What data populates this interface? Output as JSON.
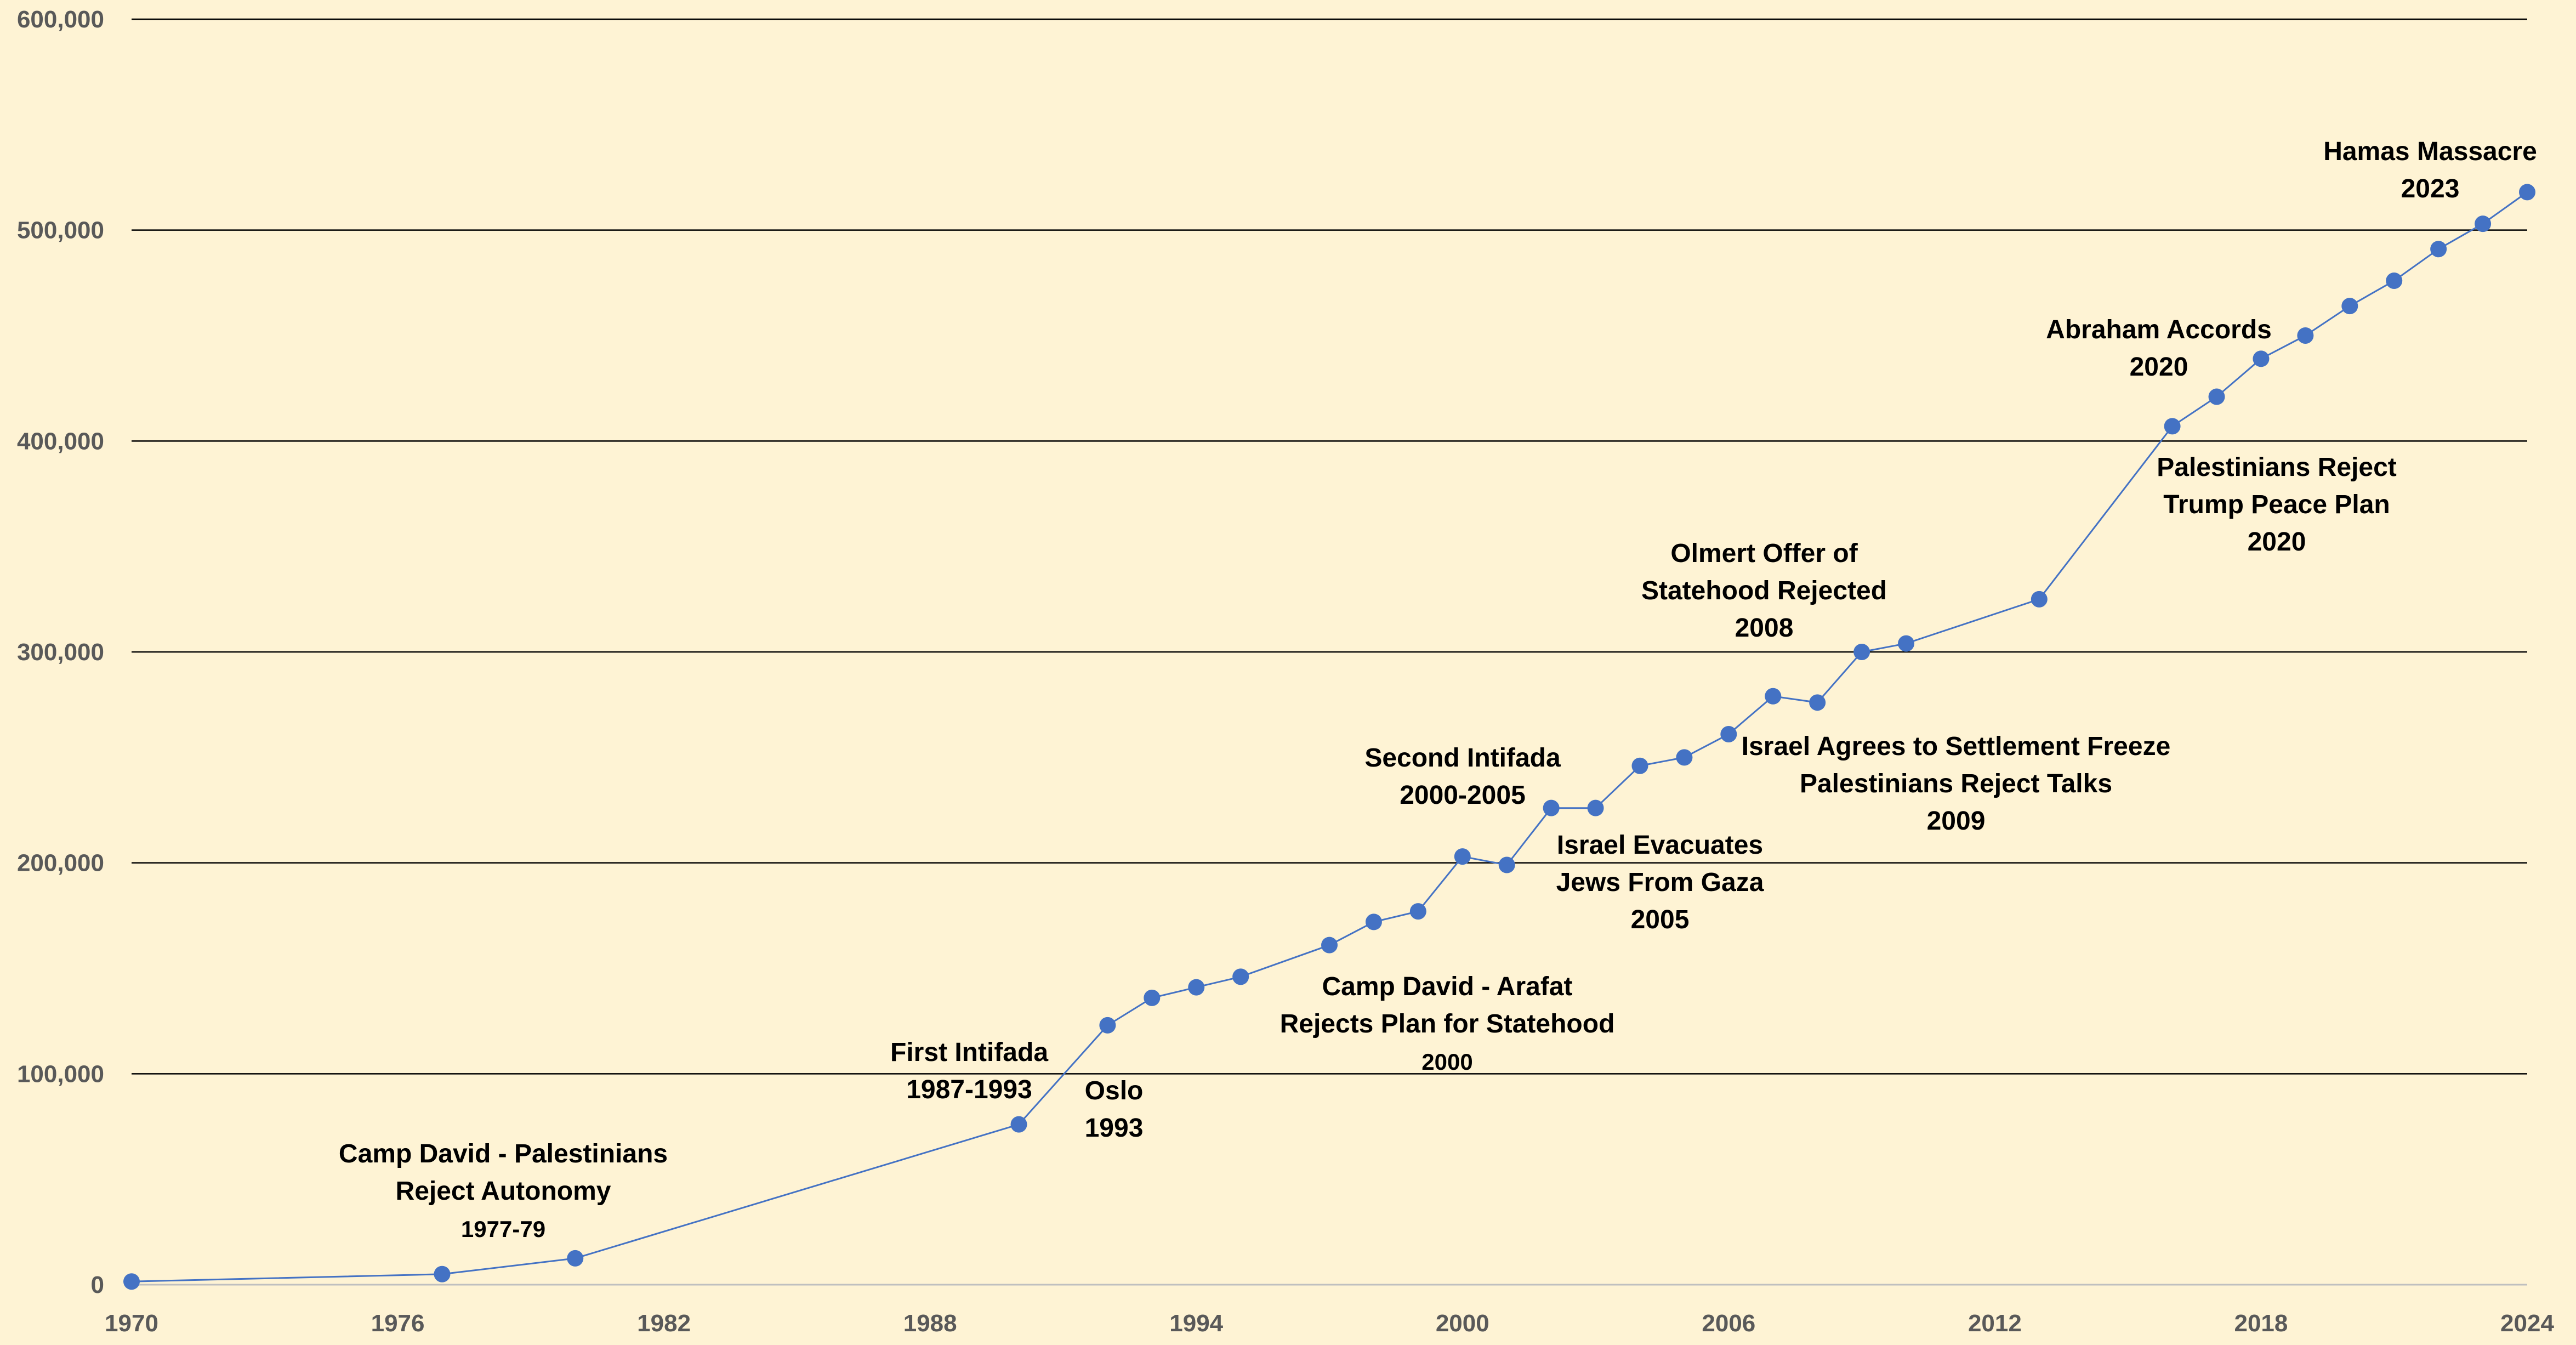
{
  "chart_data": {
    "type": "line",
    "title": "",
    "xlabel": "",
    "ylabel": "",
    "xlim": [
      1970,
      2024
    ],
    "ylim": [
      0,
      600000
    ],
    "grid": true,
    "legend": "none",
    "colors": {
      "background": "#fef3d4",
      "line": "#4472c4",
      "gridline": "#000000",
      "axis": "#bfbfbf",
      "tick_text": "#595959"
    },
    "x_ticks": [
      "1970",
      "1976",
      "1982",
      "1988",
      "1994",
      "2000",
      "2006",
      "2012",
      "2018",
      "2024"
    ],
    "y_ticks": [
      "0",
      "100,000",
      "200,000",
      "300,000",
      "400,000",
      "500,000",
      "600,000"
    ],
    "series": [
      {
        "points": [
          [
            1970,
            1500
          ],
          [
            1977,
            5000
          ],
          [
            1980,
            12500
          ],
          [
            1990,
            76000
          ],
          [
            1992,
            123000
          ],
          [
            1993,
            136000
          ],
          [
            1994,
            141000
          ],
          [
            1995,
            146000
          ],
          [
            1997,
            161000
          ],
          [
            1998,
            172000
          ],
          [
            1999,
            177000
          ],
          [
            2000,
            203000
          ],
          [
            2001,
            199000
          ],
          [
            2002,
            226000
          ],
          [
            2003,
            226000
          ],
          [
            2004,
            246000
          ],
          [
            2005,
            250000
          ],
          [
            2006,
            261000
          ],
          [
            2007,
            279000
          ],
          [
            2008,
            276000
          ],
          [
            2009,
            300000
          ],
          [
            2010,
            304000
          ],
          [
            2013,
            325000
          ],
          [
            2016,
            407000
          ],
          [
            2017,
            421000
          ],
          [
            2018,
            439000
          ],
          [
            2019,
            450000
          ],
          [
            2020,
            464000
          ],
          [
            2021,
            476000
          ],
          [
            2022,
            491000
          ],
          [
            2023,
            503000
          ],
          [
            2024,
            518000
          ]
        ]
      }
    ],
    "annotations": [
      {
        "lines": [
          "Camp David -  Palestinians",
          "Reject Autonomy",
          "1977-79"
        ]
      },
      {
        "lines": [
          "First Intifada",
          "1987-1993"
        ]
      },
      {
        "lines": [
          "Oslo",
          "1993"
        ]
      },
      {
        "lines": [
          "Camp David - Arafat",
          "Rejects  Plan for Statehood",
          "2000"
        ]
      },
      {
        "lines": [
          "Second Intifada",
          "2000-2005"
        ]
      },
      {
        "lines": [
          "Israel Evacuates",
          "Jews From Gaza",
          "2005"
        ]
      },
      {
        "lines": [
          "Olmert  Offer of",
          "Statehood Rejected",
          "2008"
        ]
      },
      {
        "lines": [
          "Israel Agrees to Settlement Freeze",
          "Palestinians Reject Talks",
          "2009"
        ]
      },
      {
        "lines": [
          "Abraham Accords",
          "2020"
        ]
      },
      {
        "lines": [
          "Palestinians Reject",
          "Trump Peace Plan",
          "2020"
        ]
      },
      {
        "lines": [
          "Hamas Massacre",
          "2023"
        ]
      }
    ]
  }
}
